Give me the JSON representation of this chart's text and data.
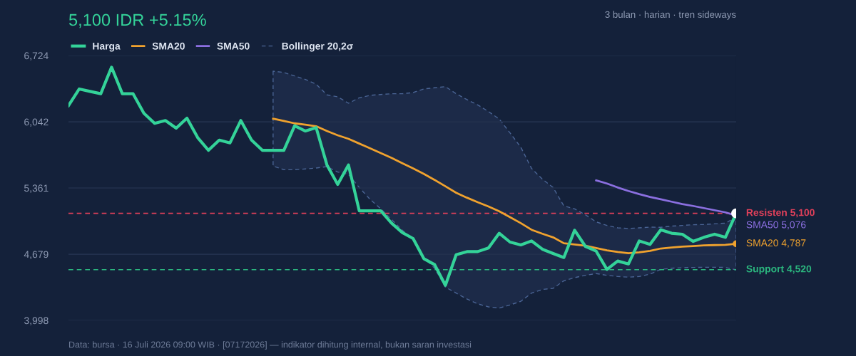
{
  "chart_data": {
    "type": "line",
    "title": "5,100 IDR +5.15%",
    "subtitle": "3 bulan · harian · tren sideways",
    "categories": [
      null,
      null,
      null,
      null,
      null,
      null,
      null,
      null,
      null,
      null,
      null,
      null,
      null,
      null,
      null,
      null,
      null,
      null,
      null,
      null,
      null,
      null,
      null,
      null,
      null,
      null,
      null,
      null,
      null,
      null,
      null,
      null,
      null,
      null,
      null,
      null,
      null,
      null,
      null,
      null,
      null,
      null,
      null,
      null,
      null,
      null,
      null,
      null,
      null,
      null,
      null,
      null,
      null,
      null,
      null,
      null,
      null,
      null,
      null,
      null,
      null,
      null,
      null
    ],
    "series": [
      {
        "name": "Harga",
        "color": "#34d399",
        "values": [
          6209,
          6380,
          6355,
          6331,
          6604,
          6331,
          6331,
          6130,
          6026,
          6055,
          5977,
          6079,
          5879,
          5749,
          5854,
          5825,
          6055,
          5854,
          5749,
          5749,
          5749,
          6001,
          5947,
          5982,
          5598,
          5398,
          5598,
          5126,
          5126,
          5126,
          4999,
          4902,
          4841,
          4633,
          4572,
          4359,
          4674,
          4706,
          4706,
          4743,
          4895,
          4804,
          4775,
          4816,
          4731,
          4687,
          4645,
          4926,
          4760,
          4711,
          4523,
          4609,
          4579,
          4816,
          4780,
          4931,
          4895,
          4885,
          4811,
          4853,
          4885,
          4853,
          5100
        ]
      },
      {
        "name": "SMA20",
        "color": "#f0a22e",
        "values": [
          null,
          null,
          null,
          null,
          null,
          null,
          null,
          null,
          null,
          null,
          null,
          null,
          null,
          null,
          null,
          null,
          null,
          null,
          null,
          6074,
          6050,
          6026,
          6013,
          5996,
          5947,
          5903,
          5867,
          5818,
          5769,
          5720,
          5671,
          5615,
          5562,
          5506,
          5444,
          5378,
          5312,
          5261,
          5214,
          5170,
          5121,
          5061,
          4999,
          4931,
          4890,
          4853,
          4792,
          4780,
          4767,
          4743,
          4719,
          4702,
          4689,
          4699,
          4714,
          4738,
          4748,
          4758,
          4763,
          4770,
          4773,
          4775,
          4787
        ],
        "upper": [
          null,
          null,
          null,
          null,
          null,
          null,
          null,
          null,
          null,
          null,
          null,
          null,
          null,
          null,
          null,
          null,
          null,
          null,
          null,
          6563,
          6550,
          6514,
          6478,
          6429,
          6319,
          6299,
          6233,
          6289,
          6314,
          6323,
          6331,
          6331,
          6343,
          6380,
          6392,
          6404,
          6331,
          6270,
          6216,
          6148,
          6070,
          5928,
          5781,
          5562,
          5452,
          5366,
          5176,
          5146,
          5085,
          5012,
          4975,
          4951,
          4944,
          4951,
          4958,
          4956,
          4968,
          4975,
          4983,
          4985,
          4992,
          4999,
          5061
        ],
        "lower": [
          null,
          null,
          null,
          null,
          null,
          null,
          null,
          null,
          null,
          null,
          null,
          null,
          null,
          null,
          null,
          null,
          null,
          null,
          null,
          5586,
          5549,
          5549,
          5557,
          5566,
          5581,
          5525,
          5500,
          5366,
          5244,
          5146,
          5036,
          4926,
          4829,
          4645,
          4535,
          4340,
          4279,
          4218,
          4169,
          4137,
          4125,
          4157,
          4194,
          4279,
          4316,
          4328,
          4406,
          4438,
          4462,
          4480,
          4462,
          4450,
          4443,
          4450,
          4474,
          4523,
          4535,
          4540,
          4543,
          4545,
          4545,
          4543,
          4518
        ]
      },
      {
        "name": "SMA50",
        "color": "#8b6fe0",
        "values": [
          null,
          null,
          null,
          null,
          null,
          null,
          null,
          null,
          null,
          null,
          null,
          null,
          null,
          null,
          null,
          null,
          null,
          null,
          null,
          null,
          null,
          null,
          null,
          null,
          null,
          null,
          null,
          null,
          null,
          null,
          null,
          null,
          null,
          null,
          null,
          null,
          null,
          null,
          null,
          null,
          null,
          null,
          null,
          null,
          null,
          null,
          null,
          null,
          null,
          5439,
          5407,
          5366,
          5330,
          5298,
          5269,
          5244,
          5220,
          5195,
          5176,
          5154,
          5132,
          5110,
          5076
        ]
      }
    ],
    "ref_lines": [
      {
        "axis": "y",
        "value": 5100,
        "label": "Resisten 5,100",
        "color": "#e0405a",
        "line_style": "dashed"
      },
      {
        "axis": "y",
        "value": 4520,
        "label": "Support 4,520",
        "color": "#2bb57e",
        "line_style": "dashed"
      }
    ],
    "annotations": [
      "SMA20 4,787",
      "SMA50 5,076",
      "Bollinger 20,2σ",
      "Data: bursa · 16 Juli 2026 09:00 WIB · [07172026] — indikator dihitung internal, bukan saran investasi"
    ],
    "ylim": [
      3998,
      6724
    ],
    "yticks": [
      {
        "value": 3998,
        "label": "3,998"
      },
      {
        "value": 4679,
        "label": "4,679"
      },
      {
        "value": 5361,
        "label": "5,361"
      },
      {
        "value": 6042,
        "label": "6,042"
      },
      {
        "value": 6724,
        "label": "6,724"
      }
    ],
    "grid": "y",
    "legend": "top left",
    "tick_labels": "y"
  }
}
